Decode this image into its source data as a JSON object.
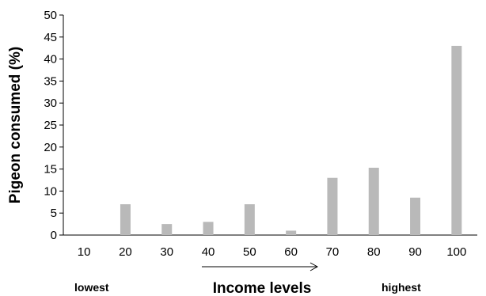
{
  "chart_data": {
    "type": "bar",
    "categories": [
      "10",
      "20",
      "30",
      "40",
      "50",
      "60",
      "70",
      "80",
      "90",
      "100"
    ],
    "values": [
      0,
      7,
      2.5,
      3,
      7,
      1,
      13,
      15.3,
      8.5,
      43
    ],
    "title": "",
    "xlabel": "Income levels",
    "ylabel": "Pigeon consumed (%)",
    "ylim": [
      0,
      50
    ],
    "yticks": [
      0,
      5,
      10,
      15,
      20,
      25,
      30,
      35,
      40,
      45,
      50
    ],
    "grid": false,
    "bar_color": "#b9b9b9",
    "annotations": {
      "low": "lowest",
      "high": "highest"
    }
  }
}
